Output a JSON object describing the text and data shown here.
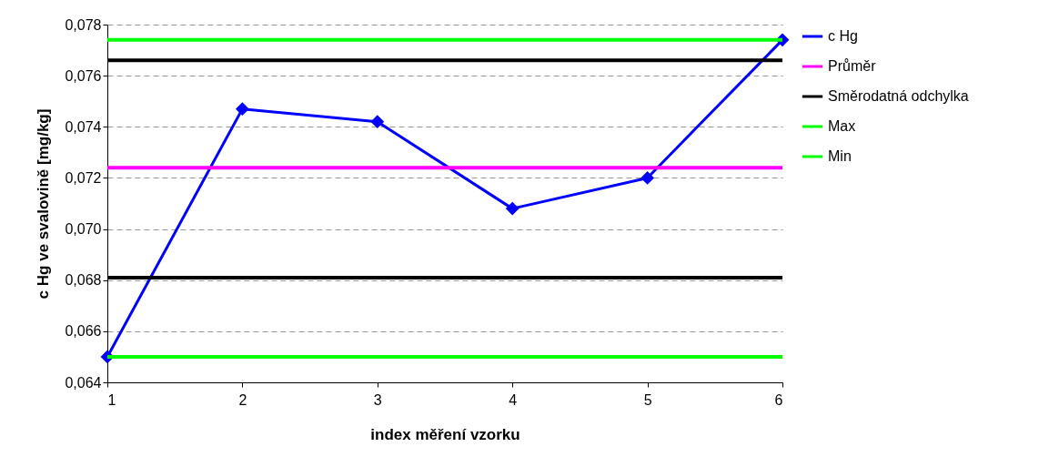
{
  "chart_data": {
    "type": "line",
    "xlabel": "index měření vzorku",
    "ylabel": "c Hg ve svalovině [mg/kg]",
    "xlim": [
      1,
      6
    ],
    "xticks": [
      1,
      2,
      3,
      4,
      5,
      6
    ],
    "ylim": [
      0.064,
      0.078
    ],
    "yticks": [
      {
        "value": 0.064,
        "label": "0,064"
      },
      {
        "value": 0.066,
        "label": "0,066"
      },
      {
        "value": 0.068,
        "label": "0,068"
      },
      {
        "value": 0.07,
        "label": "0,070"
      },
      {
        "value": 0.072,
        "label": "0,072"
      },
      {
        "value": 0.074,
        "label": "0,074"
      },
      {
        "value": 0.076,
        "label": "0,076"
      },
      {
        "value": 0.078,
        "label": "0,078"
      }
    ],
    "grid": "y",
    "legend": "right",
    "marker": "diamond",
    "line_style": "solid",
    "series": [
      {
        "name": "c Hg",
        "color": "#0000ff",
        "x": [
          1,
          2,
          3,
          4,
          5,
          6
        ],
        "values": [
          0.065,
          0.0747,
          0.0742,
          0.0708,
          0.072,
          0.0774
        ]
      },
      {
        "name": "Průměr",
        "color": "#ff00ff",
        "marker": "none",
        "x": [
          1,
          6
        ],
        "values": [
          0.0724,
          0.0724
        ]
      },
      {
        "name": "Směrodatná odchylka",
        "color": "#000000",
        "marker": "none",
        "x": [
          1,
          6
        ],
        "values": [
          0.0766,
          0.0766
        ]
      },
      {
        "color": "#000000",
        "marker": "none",
        "x": [
          1,
          6
        ],
        "values": [
          0.0681,
          0.0681
        ]
      },
      {
        "name": "Max",
        "color": "#00ff00",
        "marker": "none",
        "x": [
          1,
          6
        ],
        "values": [
          0.0774,
          0.0774
        ]
      },
      {
        "name": "Min",
        "color": "#00ff00",
        "marker": "none",
        "x": [
          1,
          6
        ],
        "values": [
          0.065,
          0.065
        ]
      }
    ]
  }
}
